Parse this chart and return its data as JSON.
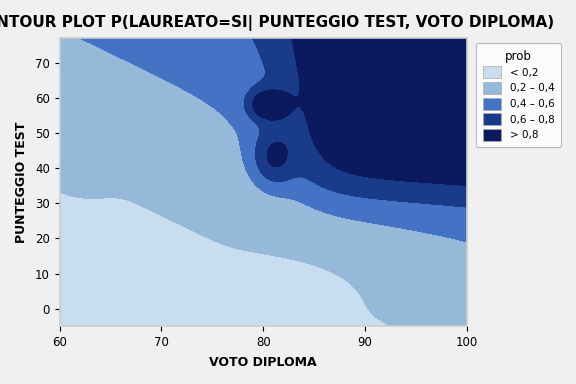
{
  "title": "CONTOUR PLOT P(LAUREATO=SI| PUNTEGGIO TEST, VOTO DIPLOMA)",
  "xlabel": "VOTO DIPLOMA",
  "ylabel": "PUNTEGGIO TEST",
  "legend_title": "prob",
  "legend_labels": [
    "< 0,2",
    "0,2 – 0,4",
    "0,4 – 0,6",
    "0,6 – 0,8",
    "> 0,8"
  ],
  "colors": [
    "#c8ddf0",
    "#97b9d9",
    "#4472c4",
    "#1a3a8a",
    "#0b1a5e"
  ],
  "levels": [
    0.0,
    0.2,
    0.4,
    0.6,
    0.8,
    1.0
  ],
  "x_range": [
    60,
    100
  ],
  "y_range": [
    -5,
    77
  ],
  "x_ticks": [
    60,
    70,
    80,
    90,
    100
  ],
  "y_ticks": [
    0,
    10,
    20,
    30,
    40,
    50,
    60,
    70
  ],
  "title_fontsize": 11,
  "axis_label_fontsize": 9,
  "background_color": "#f0f0f0"
}
